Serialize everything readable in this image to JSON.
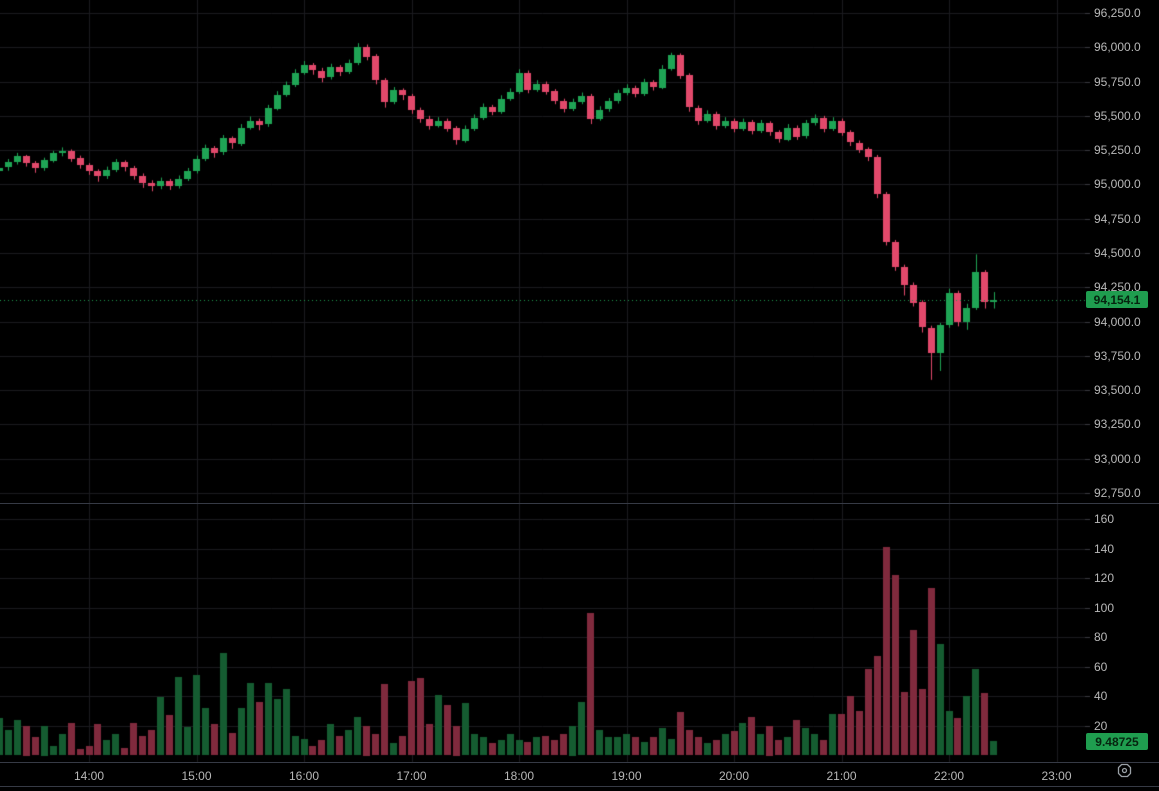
{
  "ui": {
    "price_badge": "94,154.1",
    "volume_badge": "9.48725",
    "badge_bg": "#1f9d4f",
    "badge_text_color": "#06230f",
    "icon": "octagon-dot-icon"
  },
  "colors": {
    "background": "#000000",
    "grid": "#1b1b1f",
    "divider": "#363a45",
    "up": "#1fa455",
    "down": "#e2496b",
    "volume_up": "#155c31",
    "volume_down": "#802a3d",
    "axis_text": "#b8b8b8",
    "last_price_line": "#1f9d4f",
    "tick": "#3a3a40"
  },
  "price_axis": {
    "labels": [
      "96,250.0",
      "96,000.0",
      "95,750.0",
      "95,500.0",
      "95,250.0",
      "95,000.0",
      "94,750.0",
      "94,500.0",
      "94,250.0",
      "94,000.0",
      "93,750.0",
      "93,500.0",
      "93,250.0",
      "93,000.0",
      "92,750.0"
    ],
    "values": [
      96250,
      96000,
      95750,
      95500,
      95250,
      95000,
      94750,
      94500,
      94250,
      94000,
      93750,
      93500,
      93250,
      93000,
      92750
    ]
  },
  "volume_axis": {
    "labels": [
      "160",
      "140",
      "120",
      "100",
      "80",
      "60",
      "40",
      "20"
    ],
    "values": [
      160,
      140,
      120,
      100,
      80,
      60,
      40,
      20
    ]
  },
  "time_axis": {
    "labels": [
      "14:00",
      "15:00",
      "16:00",
      "17:00",
      "18:00",
      "19:00",
      "20:00",
      "21:00",
      "22:00",
      "23:00"
    ],
    "hours": [
      14,
      15,
      16,
      17,
      18,
      19,
      20,
      21,
      22,
      23
    ]
  },
  "chart_data": {
    "type": "candlestick",
    "subchart": "volume-bar",
    "interval_minutes": 5,
    "first_candle_time": "13:10",
    "last_candle_time": "22:25",
    "price_range": [
      92750,
      96250
    ],
    "volume_range": [
      0,
      160
    ],
    "last_price": 94154.1,
    "last_volume": 9.48725,
    "grid": true,
    "columns": [
      "open",
      "high",
      "low",
      "close",
      "volume"
    ],
    "candles": [
      [
        95100,
        95150,
        95070,
        95120,
        25
      ],
      [
        95120,
        95185,
        95100,
        95160,
        17
      ],
      [
        95160,
        95230,
        95145,
        95205,
        24
      ],
      [
        95205,
        95215,
        95130,
        95155,
        20
      ],
      [
        95155,
        95170,
        95085,
        95115,
        12
      ],
      [
        95115,
        95195,
        95100,
        95175,
        20
      ],
      [
        95175,
        95245,
        95160,
        95230,
        6
      ],
      [
        95230,
        95270,
        95205,
        95245,
        14
      ],
      [
        95245,
        95255,
        95165,
        95190,
        22
      ],
      [
        95190,
        95210,
        95115,
        95140,
        4
      ],
      [
        95140,
        95155,
        95070,
        95095,
        6
      ],
      [
        95095,
        95110,
        95020,
        95060,
        21
      ],
      [
        95060,
        95130,
        95040,
        95105,
        10
      ],
      [
        95105,
        95185,
        95090,
        95160,
        14
      ],
      [
        95160,
        95175,
        95095,
        95120,
        5
      ],
      [
        95120,
        95135,
        95035,
        95060,
        22
      ],
      [
        95060,
        95080,
        94975,
        95010,
        13
      ],
      [
        95010,
        95030,
        94950,
        94985,
        17
      ],
      [
        94985,
        95050,
        94965,
        95025,
        39
      ],
      [
        95025,
        95040,
        94960,
        94990,
        27
      ],
      [
        94990,
        95065,
        94970,
        95040,
        53
      ],
      [
        95040,
        95120,
        95025,
        95095,
        19
      ],
      [
        95095,
        95210,
        95080,
        95185,
        54
      ],
      [
        95185,
        95290,
        95170,
        95265,
        32
      ],
      [
        95265,
        95280,
        95195,
        95230,
        21
      ],
      [
        95230,
        95360,
        95215,
        95335,
        69
      ],
      [
        95335,
        95350,
        95260,
        95295,
        15
      ],
      [
        95295,
        95440,
        95280,
        95415,
        32
      ],
      [
        95415,
        95495,
        95400,
        95465,
        49
      ],
      [
        95465,
        95480,
        95395,
        95435,
        36
      ],
      [
        95435,
        95580,
        95420,
        95555,
        49
      ],
      [
        95555,
        95680,
        95540,
        95655,
        38
      ],
      [
        95655,
        95750,
        95640,
        95725,
        45
      ],
      [
        95725,
        95840,
        95710,
        95815,
        13
      ],
      [
        95815,
        95900,
        95800,
        95870,
        11
      ],
      [
        95870,
        95885,
        95800,
        95830,
        6
      ],
      [
        95830,
        95850,
        95745,
        95780,
        10
      ],
      [
        95780,
        95880,
        95765,
        95855,
        21
      ],
      [
        95855,
        95870,
        95790,
        95820,
        13
      ],
      [
        95820,
        95910,
        95805,
        95885,
        17
      ],
      [
        95885,
        96030,
        95870,
        96005,
        26
      ],
      [
        96005,
        96020,
        95905,
        95935,
        20
      ],
      [
        95935,
        95950,
        95730,
        95760,
        14
      ],
      [
        95760,
        95775,
        95560,
        95600,
        48
      ],
      [
        95600,
        95710,
        95585,
        95685,
        8
      ],
      [
        95685,
        95700,
        95615,
        95645,
        13
      ],
      [
        95645,
        95660,
        95515,
        95545,
        50
      ],
      [
        95545,
        95560,
        95450,
        95480,
        52
      ],
      [
        95480,
        95500,
        95400,
        95430,
        21
      ],
      [
        95430,
        95490,
        95415,
        95465,
        41
      ],
      [
        95465,
        95480,
        95385,
        95410,
        34
      ],
      [
        95410,
        95425,
        95290,
        95320,
        20
      ],
      [
        95320,
        95430,
        95305,
        95405,
        35
      ],
      [
        95405,
        95510,
        95390,
        95485,
        14
      ],
      [
        95485,
        95590,
        95470,
        95565,
        12
      ],
      [
        95565,
        95580,
        95505,
        95530,
        8
      ],
      [
        95530,
        95650,
        95515,
        95625,
        10
      ],
      [
        95625,
        95700,
        95610,
        95675,
        14
      ],
      [
        95675,
        95840,
        95660,
        95815,
        10
      ],
      [
        95815,
        95830,
        95665,
        95690,
        9
      ],
      [
        95690,
        95760,
        95675,
        95735,
        12
      ],
      [
        95735,
        95750,
        95655,
        95680,
        13
      ],
      [
        95680,
        95695,
        95585,
        95610,
        10
      ],
      [
        95610,
        95625,
        95525,
        95550,
        14
      ],
      [
        95550,
        95625,
        95535,
        95600,
        20
      ],
      [
        95600,
        95670,
        95585,
        95645,
        36
      ],
      [
        95645,
        95660,
        95440,
        95480,
        96
      ],
      [
        95480,
        95570,
        95465,
        95545,
        17
      ],
      [
        95545,
        95630,
        95530,
        95605,
        12
      ],
      [
        95605,
        95690,
        95590,
        95665,
        12
      ],
      [
        95665,
        95730,
        95650,
        95705,
        14
      ],
      [
        95705,
        95720,
        95635,
        95660,
        12
      ],
      [
        95660,
        95770,
        95645,
        95745,
        9
      ],
      [
        95745,
        95760,
        95685,
        95710,
        12
      ],
      [
        95710,
        95870,
        95695,
        95845,
        18
      ],
      [
        95845,
        95960,
        95830,
        95945,
        11
      ],
      [
        95945,
        95955,
        95770,
        95795,
        29
      ],
      [
        95795,
        95810,
        95530,
        95560,
        17
      ],
      [
        95560,
        95575,
        95435,
        95465,
        12
      ],
      [
        95465,
        95540,
        95450,
        95515,
        8
      ],
      [
        95515,
        95530,
        95400,
        95425,
        10
      ],
      [
        95425,
        95490,
        95410,
        95465,
        14
      ],
      [
        95465,
        95480,
        95380,
        95405,
        16
      ],
      [
        95405,
        95480,
        95390,
        95455,
        22
      ],
      [
        95455,
        95470,
        95365,
        95390,
        26
      ],
      [
        95390,
        95470,
        95375,
        95445,
        14
      ],
      [
        95445,
        95460,
        95355,
        95380,
        20
      ],
      [
        95380,
        95395,
        95305,
        95330,
        10
      ],
      [
        95330,
        95440,
        95315,
        95415,
        12
      ],
      [
        95415,
        95430,
        95325,
        95350,
        24
      ],
      [
        95350,
        95470,
        95335,
        95445,
        18
      ],
      [
        95445,
        95510,
        95430,
        95485,
        14
      ],
      [
        95485,
        95500,
        95380,
        95405,
        10
      ],
      [
        95405,
        95490,
        95390,
        95465,
        28
      ],
      [
        95465,
        95480,
        95355,
        95380,
        28
      ],
      [
        95380,
        95395,
        95280,
        95305,
        40
      ],
      [
        95305,
        95320,
        95230,
        95255,
        30
      ],
      [
        95255,
        95270,
        95170,
        95200,
        58
      ],
      [
        95200,
        95215,
        94900,
        94930,
        67
      ],
      [
        94930,
        94945,
        94555,
        94580,
        141
      ],
      [
        94580,
        94595,
        94370,
        94400,
        122
      ],
      [
        94400,
        94415,
        94190,
        94270,
        43
      ],
      [
        94270,
        94285,
        94110,
        94140,
        85
      ],
      [
        94140,
        94155,
        93920,
        93955,
        45
      ],
      [
        93955,
        93970,
        93575,
        93770,
        113
      ],
      [
        93770,
        93990,
        93640,
        93975,
        75
      ],
      [
        93975,
        94240,
        93955,
        94210,
        30
      ],
      [
        94210,
        94225,
        93965,
        94000,
        25
      ],
      [
        94000,
        94130,
        93940,
        94100,
        40
      ],
      [
        94100,
        94490,
        94085,
        94360,
        58
      ],
      [
        94360,
        94375,
        94095,
        94140,
        42
      ],
      [
        94140,
        94215,
        94095,
        94154.1,
        9.48725
      ]
    ]
  }
}
